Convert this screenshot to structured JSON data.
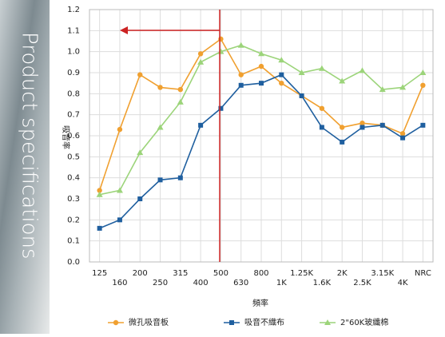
{
  "sidebar": {
    "text": "Product specifications"
  },
  "chart_data": {
    "type": "line",
    "y_label": "吸音率",
    "x_label": "頻率",
    "categories": [
      "125",
      "160",
      "200",
      "250",
      "315",
      "400",
      "500",
      "630",
      "800",
      "1K",
      "1.25K",
      "1.6K",
      "2K",
      "2.5K",
      "3.15K",
      "4K",
      "NRC"
    ],
    "series": [
      {
        "name": "微孔吸音板",
        "color": "#f0a030",
        "marker": "circle",
        "values": [
          0.34,
          0.63,
          0.89,
          0.83,
          0.82,
          0.99,
          1.06,
          0.89,
          0.93,
          0.85,
          0.79,
          0.73,
          0.64,
          0.66,
          0.65,
          0.61,
          0.84
        ]
      },
      {
        "name": "吸音不織布",
        "color": "#1f5f9f",
        "marker": "square",
        "values": [
          0.16,
          0.2,
          0.3,
          0.39,
          0.4,
          0.65,
          0.73,
          0.84,
          0.85,
          0.89,
          0.79,
          0.64,
          0.57,
          0.64,
          0.65,
          0.59,
          0.65
        ]
      },
      {
        "name": "2\"60K玻纖棉",
        "color": "#9cd47a",
        "marker": "triangle",
        "values": [
          0.32,
          0.34,
          0.52,
          0.64,
          0.76,
          0.95,
          1.0,
          1.03,
          0.99,
          0.96,
          0.9,
          0.92,
          0.86,
          0.91,
          0.82,
          0.83,
          0.9
        ]
      }
    ],
    "ylim": [
      0,
      1.2
    ],
    "yticks": [
      {
        "value": 0,
        "label": "0.0"
      },
      0.1,
      0.2,
      0.3,
      0.4,
      0.5,
      0.6,
      0.7,
      0.8,
      0.9,
      {
        "value": 1,
        "label": "1.0"
      },
      1.1,
      1.2
    ],
    "grid": true
  }
}
